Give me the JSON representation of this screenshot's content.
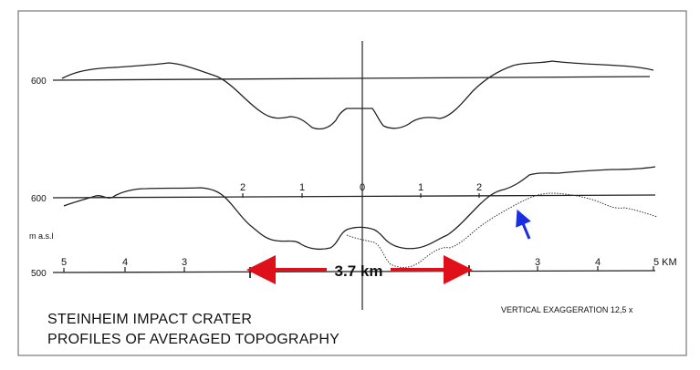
{
  "elevation_label_upper": "600",
  "elevation_label_lower": "600",
  "elevation_label_500": "500",
  "masl_label": "m a.s.l",
  "upper_ticks": [
    "2",
    "1",
    "0",
    "1",
    "2"
  ],
  "lower_ticks": [
    "5",
    "4",
    "3",
    "3",
    "4",
    "5 KM"
  ],
  "measurement_label": "3.7 km",
  "vertical_exaggeration": "VERTICAL  EXAGGERATION  12,5 x",
  "caption_line1": "STEINHEIM IMPACT CRATER",
  "caption_line2": "PROFILES OF AVERAGED TOPOGRAPHY",
  "colors": {
    "arrow_red": "#e0101a",
    "arrow_blue": "#1a2ee0",
    "ink": "#111111",
    "frame": "#777777"
  }
}
